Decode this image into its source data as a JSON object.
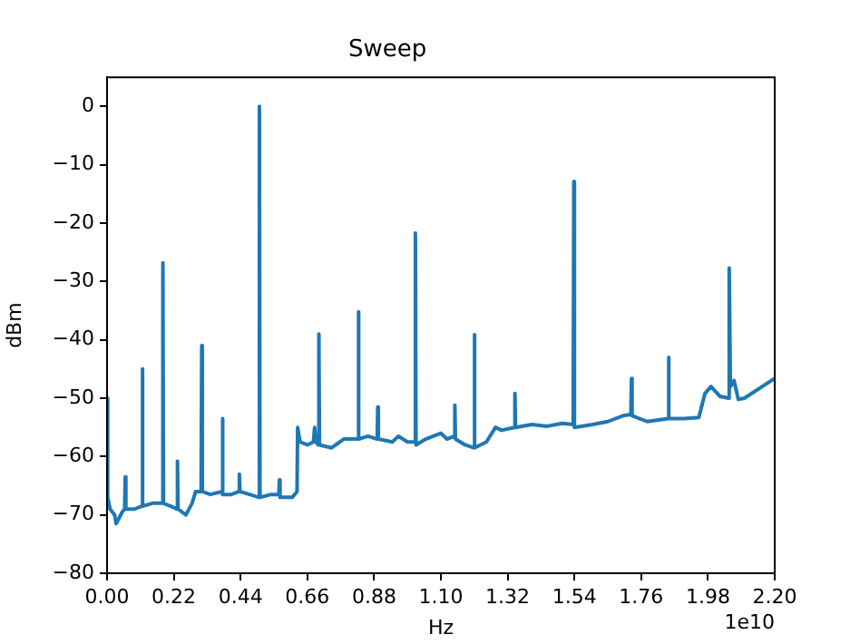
{
  "chart_data": {
    "type": "line",
    "title": "Sweep",
    "xlabel": "Hz",
    "ylabel": "dBm",
    "annotations": [
      "1e10"
    ],
    "xlim": [
      0,
      2.2
    ],
    "ylim": [
      -80,
      5
    ],
    "xticks": [
      {
        "value": 0,
        "label": "0.00"
      },
      {
        "value": 0.22,
        "label": "0.22"
      },
      {
        "value": 0.44,
        "label": "0.44"
      },
      {
        "value": 0.66,
        "label": "0.66"
      },
      {
        "value": 0.88,
        "label": "0.88"
      },
      {
        "value": 1.1,
        "label": "1.10"
      },
      {
        "value": 1.32,
        "label": "1.32"
      },
      {
        "value": 1.54,
        "label": "1.54"
      },
      {
        "value": 1.76,
        "label": "1.76"
      },
      {
        "value": 1.98,
        "label": "1.98"
      },
      {
        "value": 2.2,
        "label": "2.20"
      }
    ],
    "yticks": [
      -80,
      -70,
      -60,
      -50,
      -40,
      -30,
      -20,
      -10,
      0
    ],
    "grid": false,
    "legend": false,
    "marker": "none",
    "line_style": "solid",
    "x": [
      0,
      0.002,
      0.01,
      0.025,
      0.03,
      0.05,
      0.058,
      0.06,
      0.062,
      0.09,
      0.114,
      0.116,
      0.118,
      0.15,
      0.182,
      0.184,
      0.186,
      0.21,
      0.23,
      0.232,
      0.234,
      0.26,
      0.28,
      0.292,
      0.31,
      0.312,
      0.314,
      0.34,
      0.378,
      0.38,
      0.382,
      0.41,
      0.434,
      0.436,
      0.438,
      0.47,
      0.5,
      0.502,
      0.504,
      0.54,
      0.566,
      0.568,
      0.57,
      0.61,
      0.626,
      0.628,
      0.632,
      0.636,
      0.66,
      0.68,
      0.684,
      0.688,
      0.696,
      0.698,
      0.7,
      0.74,
      0.78,
      0.826,
      0.828,
      0.83,
      0.86,
      0.89,
      0.892,
      0.894,
      0.94,
      0.96,
      0.99,
      1.014,
      1.016,
      1.018,
      1.05,
      1.1,
      1.12,
      1.144,
      1.146,
      1.148,
      1.18,
      1.208,
      1.21,
      1.212,
      1.25,
      1.28,
      1.3,
      1.342,
      1.344,
      1.346,
      1.4,
      1.45,
      1.5,
      1.536,
      1.538,
      1.54,
      1.6,
      1.65,
      1.7,
      1.726,
      1.728,
      1.73,
      1.78,
      1.848,
      1.85,
      1.852,
      1.9,
      1.95,
      1.97,
      1.99,
      2.02,
      2.048,
      2.05,
      2.054,
      2.066,
      2.08,
      2.1,
      2.2
    ],
    "series": [
      {
        "color": "#1f77b4",
        "values": [
          -50,
          -67,
          -69,
          -70,
          -71.5,
          -69.5,
          -69,
          -63.5,
          -69,
          -69,
          -68.5,
          -45,
          -68.5,
          -68,
          -68,
          -26.8,
          -68,
          -68.5,
          -69,
          -60.8,
          -69,
          -70,
          -68,
          -66,
          -66,
          -41,
          -66,
          -66.5,
          -66,
          -53.5,
          -66.5,
          -66.5,
          -66,
          -63,
          -66,
          -66.5,
          -67,
          0,
          -67,
          -66.5,
          -66.5,
          -64,
          -67,
          -67,
          -66,
          -55,
          -55,
          -57.5,
          -58,
          -57.5,
          -55,
          -57.5,
          -58,
          -39,
          -58,
          -58.5,
          -57,
          -57,
          -35.2,
          -57,
          -56.5,
          -57,
          -51.5,
          -57,
          -57.5,
          -56.5,
          -57.5,
          -57.5,
          -21.7,
          -58,
          -57,
          -56,
          -57,
          -56.5,
          -51.2,
          -57,
          -58,
          -58.5,
          -39.1,
          -58.5,
          -57.5,
          -55,
          -55.5,
          -55,
          -49.2,
          -55,
          -54.5,
          -54.8,
          -54.3,
          -54.5,
          -12.9,
          -55,
          -54.5,
          -54,
          -53,
          -52.8,
          -46.6,
          -53,
          -54,
          -53.5,
          -43,
          -53.5,
          -53.5,
          -53.3,
          -49.2,
          -48,
          -49.7,
          -50,
          -27.7,
          -48,
          -47,
          -50.2,
          -50,
          -46.6
        ]
      }
    ]
  }
}
